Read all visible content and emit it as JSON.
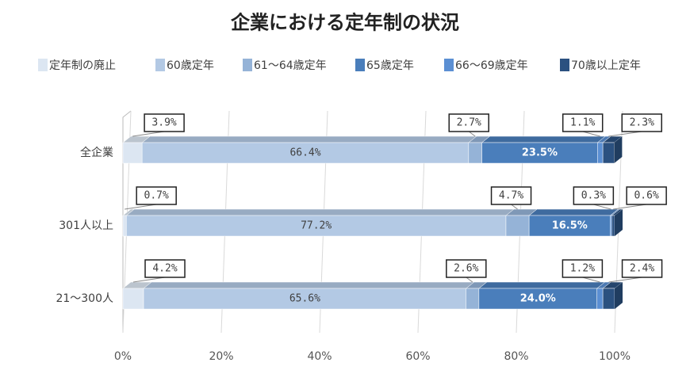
{
  "chart_data": {
    "type": "stacked_bar_horizontal",
    "title": "企業における定年制の状況",
    "categories": [
      "全企業",
      "301人以上",
      "21〜300人"
    ],
    "series": [
      {
        "name": "定年制の廃止",
        "color": "#dce6f2",
        "values": [
          3.9,
          0.7,
          4.2
        ],
        "value_labels": [
          "3.9%",
          "0.7%",
          "4.2%"
        ]
      },
      {
        "name": "60歳定年",
        "color": "#b3c9e4",
        "values": [
          66.4,
          77.2,
          65.6
        ],
        "value_labels": [
          "66.4%",
          "77.2%",
          "65.6%"
        ]
      },
      {
        "name": "61〜64歳定年",
        "color": "#95b3d7",
        "values": [
          2.7,
          4.7,
          2.6
        ],
        "value_labels": [
          "2.7%",
          "4.7%",
          "2.6%"
        ]
      },
      {
        "name": "65歳定年",
        "color": "#4a7ebb",
        "values": [
          23.5,
          16.5,
          24
        ],
        "value_labels": [
          "23.5%",
          "16.5%",
          "24.0%"
        ]
      },
      {
        "name": "66〜69歳定年",
        "color": "#5b8fd3",
        "values": [
          1.1,
          0.3,
          1.2
        ],
        "value_labels": [
          "1.1%",
          "0.3%",
          "1.2%"
        ]
      },
      {
        "name": "70歳以上定年",
        "color": "#2b5180",
        "values": [
          2.3,
          0.6,
          2.4
        ],
        "value_labels": [
          "2.3%",
          "0.6%",
          "2.4%"
        ]
      }
    ],
    "xlim": [
      0,
      100
    ],
    "xticks": [
      {
        "value": 0,
        "label": "0%"
      },
      {
        "value": 20,
        "label": "20%"
      },
      {
        "value": 40,
        "label": "40%"
      },
      {
        "value": 60,
        "label": "60%"
      },
      {
        "value": 80,
        "label": "80%"
      },
      {
        "value": 100,
        "label": "100%"
      }
    ],
    "grid": true,
    "legend": "top"
  }
}
